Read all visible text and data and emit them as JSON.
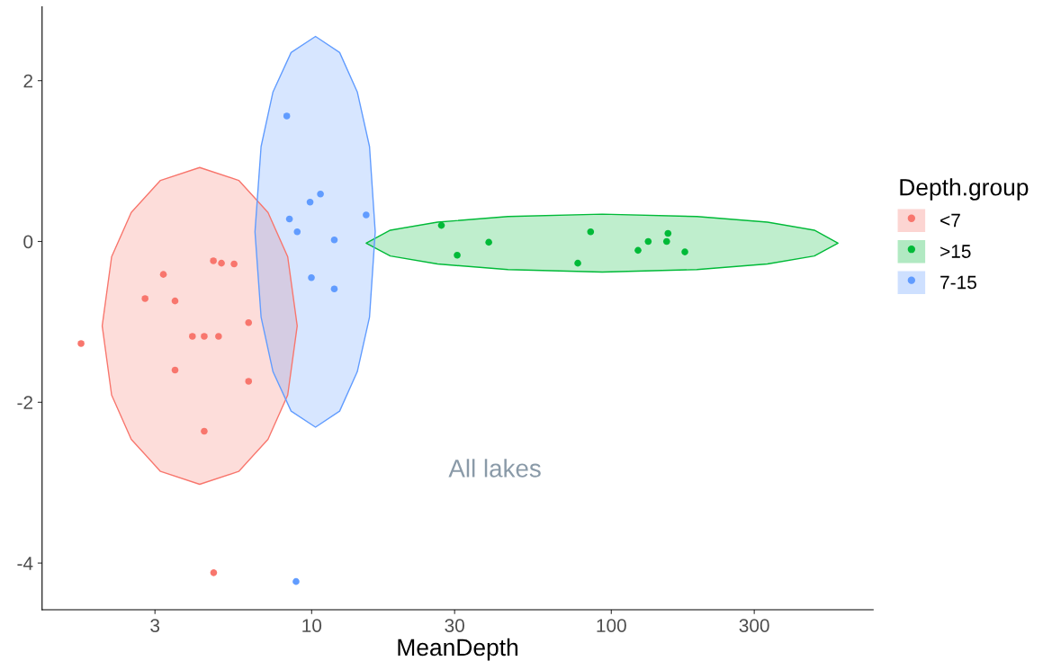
{
  "chart_data": {
    "type": "scatter",
    "xlabel": "MeanDepth",
    "legend_title": "Depth.group",
    "legend": "right",
    "log": "x",
    "grid": false,
    "marker": "circle",
    "xlim": [
      1.26,
      748
    ],
    "xticks": [
      3,
      10,
      30,
      100,
      300
    ],
    "ylim": [
      -4.58,
      2.92
    ],
    "yticks": [
      -4,
      -2,
      0,
      2
    ],
    "annotations": [
      "All lakes"
    ],
    "series": [
      {
        "type": "area",
        "marker": "none",
        "color": "#f8766d",
        "x": [
          2.0,
          2.15,
          2.5,
          3.13,
          4.23,
          5.71,
          7.15,
          8.32,
          8.95,
          8.32,
          7.15,
          5.71,
          4.23,
          3.13,
          2.5,
          2.15
        ],
        "values": [
          -1.05,
          -0.19,
          0.36,
          0.76,
          0.92,
          0.76,
          0.36,
          -0.19,
          -1.05,
          -1.91,
          -2.46,
          -2.86,
          -3.02,
          -2.86,
          -2.46,
          -1.91
        ]
      },
      {
        "type": "area",
        "marker": "none",
        "color": "#00ba38",
        "x": [
          15.2,
          18.3,
          26.3,
          45.2,
          93.3,
          193,
          332,
          476,
          571,
          476,
          332,
          193,
          93.3,
          45.2,
          26.3,
          18.3
        ],
        "values": [
          -0.02,
          0.14,
          0.24,
          0.31,
          0.34,
          0.31,
          0.24,
          0.14,
          -0.02,
          -0.18,
          -0.28,
          -0.35,
          -0.38,
          -0.35,
          -0.28,
          -0.18
        ]
      },
      {
        "type": "area",
        "marker": "none",
        "color": "#619cff",
        "x": [
          6.47,
          6.78,
          7.43,
          8.54,
          10.3,
          12.4,
          14.2,
          15.6,
          16.3,
          15.6,
          14.2,
          12.4,
          10.3,
          8.54,
          7.43,
          6.78
        ],
        "values": [
          0.12,
          1.18,
          1.86,
          2.35,
          2.55,
          2.35,
          1.86,
          1.18,
          0.12,
          -0.94,
          -1.62,
          -2.11,
          -2.31,
          -2.11,
          -1.62,
          -0.94
        ]
      },
      {
        "name": "<7",
        "color": "#f8766d",
        "x": [
          1.7,
          2.78,
          3.2,
          3.5,
          3.5,
          4.0,
          4.38,
          4.89,
          4.7,
          5.0,
          5.51,
          6.16,
          6.16,
          4.38,
          4.71
        ],
        "values": [
          -1.27,
          -0.71,
          -0.41,
          -0.74,
          -1.6,
          -1.18,
          -1.18,
          -1.18,
          -0.24,
          -0.27,
          -0.28,
          -1.01,
          -1.74,
          -2.36,
          -4.12
        ]
      },
      {
        "name": ">15",
        "color": "#00ba38",
        "x": [
          27.1,
          30.6,
          39.0,
          85.3,
          77.3,
          122.8,
          132.8,
          154.6,
          153,
          176
        ],
        "values": [
          0.2,
          -0.17,
          -0.01,
          0.12,
          -0.27,
          -0.11,
          0.0,
          0.1,
          0.0,
          -0.13
        ]
      },
      {
        "name": "7-15",
        "color": "#619cff",
        "x": [
          8.26,
          9.88,
          10.7,
          8.43,
          8.95,
          11.9,
          15.2,
          9.98,
          11.9,
          8.87
        ],
        "values": [
          1.56,
          0.49,
          0.59,
          0.28,
          0.12,
          0.02,
          0.33,
          -0.45,
          -0.59,
          -4.23
        ]
      }
    ]
  }
}
